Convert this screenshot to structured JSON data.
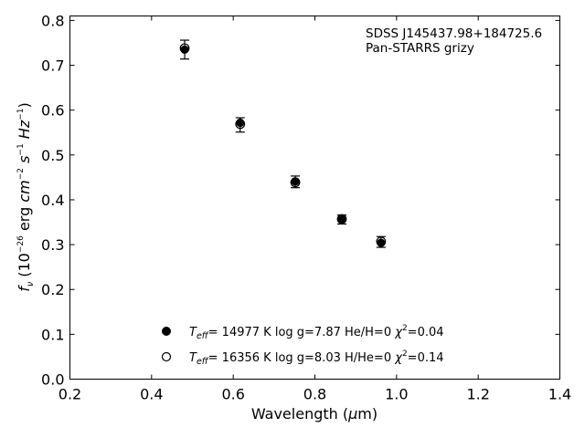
{
  "chart_data": {
    "type": "scatter",
    "xlabel_prefix": "Wavelength (",
    "xlabel_mu": "μ",
    "xlabel_suffix": "m)",
    "ylabel_prefix": "(10",
    "ylabel_exp": "−26",
    "ylabel_erg": " erg ",
    "ylabel_cm": "cm",
    "ylabel_cm_exp": "−2",
    "ylabel_s": "s",
    "ylabel_s_exp": "−1",
    "ylabel_hz": "Hz",
    "ylabel_hz_exp": "−1",
    "ylabel_close": ")",
    "ylabel_f": "f",
    "ylabel_nu": "ν",
    "xlim": [
      0.2,
      1.4
    ],
    "ylim": [
      0.0,
      0.81
    ],
    "xticks": [
      0.2,
      0.4,
      0.6,
      0.8,
      1.0,
      1.2,
      1.4
    ],
    "xtick_labels": [
      "0.2",
      "0.4",
      "0.6",
      "0.8",
      "1.0",
      "1.2",
      "1.4"
    ],
    "yticks": [
      0.0,
      0.1,
      0.2,
      0.3,
      0.4,
      0.5,
      0.6,
      0.7,
      0.8
    ],
    "ytick_labels": [
      "0.0",
      "0.1",
      "0.2",
      "0.3",
      "0.4",
      "0.5",
      "0.6",
      "0.7",
      "0.8"
    ],
    "grid": false,
    "annotation": [
      "SDSS J145437.98+184725.6",
      "Pan-STARRS grizy"
    ],
    "observed": [
      {
        "x": 0.481,
        "y": 0.735,
        "err": 0.021
      },
      {
        "x": 0.617,
        "y": 0.567,
        "err": 0.016
      },
      {
        "x": 0.752,
        "y": 0.44,
        "err": 0.013
      },
      {
        "x": 0.866,
        "y": 0.356,
        "err": 0.01
      },
      {
        "x": 0.962,
        "y": 0.306,
        "err": 0.012
      }
    ],
    "series": [
      {
        "marker": "filled",
        "values": [
          {
            "x": 0.481,
            "y": 0.735
          },
          {
            "x": 0.617,
            "y": 0.572
          },
          {
            "x": 0.752,
            "y": 0.441
          },
          {
            "x": 0.866,
            "y": 0.356
          },
          {
            "x": 0.962,
            "y": 0.304
          }
        ],
        "label_T": "T",
        "label_eff": "eff",
        "label_main": "= 14977 K  log g=7.87  He/H=0  ",
        "label_chi": "χ",
        "label_chi_exp": "2",
        "label_chi_val": "=0.04"
      },
      {
        "marker": "open",
        "values": [
          {
            "x": 0.481,
            "y": 0.738
          },
          {
            "x": 0.617,
            "y": 0.569
          },
          {
            "x": 0.752,
            "y": 0.439
          },
          {
            "x": 0.866,
            "y": 0.357
          },
          {
            "x": 0.962,
            "y": 0.307
          }
        ],
        "label_T": "T",
        "label_eff": "eff",
        "label_main": "= 16356 K  log g=8.03  H/He=0  ",
        "label_chi": "χ",
        "label_chi_exp": "2",
        "label_chi_val": "=0.14"
      }
    ],
    "legend_position": "lower-center"
  }
}
